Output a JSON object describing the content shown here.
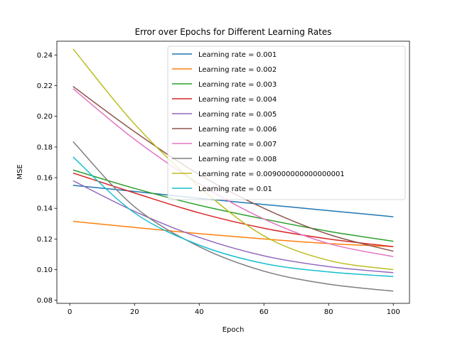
{
  "chart_data": {
    "type": "line",
    "title": "Error over Epochs for Different Learning Rates",
    "xlabel": "Epoch",
    "ylabel": "MSE",
    "xlim": [
      -4,
      105
    ],
    "ylim": [
      0.078,
      0.249
    ],
    "xticks": [
      0,
      20,
      40,
      60,
      80,
      100
    ],
    "xtick_labels": [
      "0",
      "20",
      "40",
      "60",
      "80",
      "100"
    ],
    "yticks": [
      0.08,
      0.1,
      0.12,
      0.14,
      0.16,
      0.18,
      0.2,
      0.22,
      0.24
    ],
    "ytick_labels": [
      "0.08",
      "0.10",
      "0.12",
      "0.14",
      "0.16",
      "0.18",
      "0.20",
      "0.22",
      "0.24"
    ],
    "grid": false,
    "legend_position": "upper right",
    "series": [
      {
        "name": "Learning rate = 0.001",
        "color": "#1f77b4",
        "x": [
          1,
          20,
          40,
          60,
          80,
          100
        ],
        "y": [
          0.155,
          0.151,
          0.1465,
          0.1425,
          0.1385,
          0.1345
        ]
      },
      {
        "name": "Learning rate = 0.002",
        "color": "#ff7f0e",
        "x": [
          1,
          20,
          40,
          60,
          80,
          100
        ],
        "y": [
          0.1315,
          0.1275,
          0.1235,
          0.12,
          0.117,
          0.115
        ]
      },
      {
        "name": "Learning rate = 0.003",
        "color": "#2ca02c",
        "x": [
          1,
          20,
          40,
          60,
          80,
          100
        ],
        "y": [
          0.165,
          0.153,
          0.142,
          0.133,
          0.125,
          0.1185
        ]
      },
      {
        "name": "Learning rate = 0.004",
        "color": "#d62728",
        "x": [
          1,
          20,
          40,
          60,
          80,
          100
        ],
        "y": [
          0.163,
          0.15,
          0.137,
          0.127,
          0.12,
          0.115
        ]
      },
      {
        "name": "Learning rate = 0.005",
        "color": "#9467bd",
        "x": [
          1,
          20,
          40,
          60,
          80,
          100
        ],
        "y": [
          0.158,
          0.138,
          0.121,
          0.109,
          0.102,
          0.098
        ]
      },
      {
        "name": "Learning rate = 0.006",
        "color": "#8c564b",
        "x": [
          1,
          20,
          40,
          60,
          80,
          100
        ],
        "y": [
          0.2195,
          0.19,
          0.162,
          0.14,
          0.123,
          0.112
        ]
      },
      {
        "name": "Learning rate = 0.007",
        "color": "#e377c2",
        "x": [
          1,
          20,
          40,
          60,
          80,
          100
        ],
        "y": [
          0.218,
          0.185,
          0.156,
          0.133,
          0.117,
          0.1085
        ]
      },
      {
        "name": "Learning rate = 0.008",
        "color": "#7f7f7f",
        "x": [
          1,
          20,
          40,
          60,
          80,
          100
        ],
        "y": [
          0.1835,
          0.141,
          0.115,
          0.099,
          0.0905,
          0.086
        ]
      },
      {
        "name": "Learning rate = 0.009000000000000001",
        "color": "#bcbd22",
        "x": [
          1,
          20,
          40,
          60,
          80,
          100
        ],
        "y": [
          0.244,
          0.195,
          0.154,
          0.122,
          0.106,
          0.1
        ]
      },
      {
        "name": "Learning rate = 0.01",
        "color": "#17becf",
        "x": [
          1,
          20,
          40,
          60,
          80,
          100
        ],
        "y": [
          0.1735,
          0.137,
          0.116,
          0.104,
          0.0985,
          0.0955
        ]
      }
    ]
  }
}
